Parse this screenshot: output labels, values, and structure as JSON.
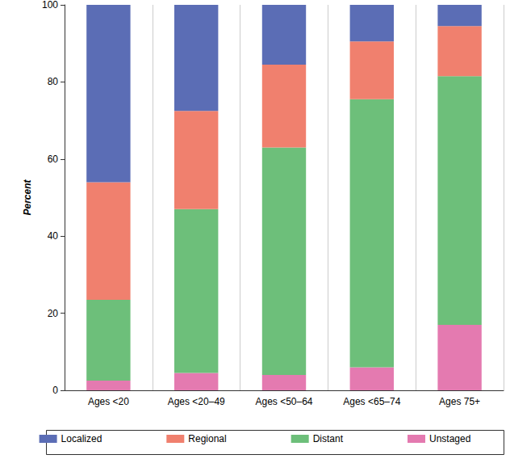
{
  "chart_data": {
    "type": "bar",
    "stacked": true,
    "grid": true,
    "y_label": "Percent",
    "categories": [
      "Ages <20",
      "Ages <20–49",
      "Ages <50–64",
      "Ages <65–74",
      "Ages 75+"
    ],
    "series": [
      {
        "name": "Localized",
        "color": "#5b6db5",
        "values": [
          46,
          27.5,
          15.5,
          9.5,
          5.5
        ]
      },
      {
        "name": "Regional",
        "color": "#f0806e",
        "values": [
          30.5,
          25.5,
          21.5,
          15,
          13
        ]
      },
      {
        "name": "Distant",
        "color": "#6dbf7a",
        "values": [
          21,
          42.5,
          59,
          69.5,
          64.5
        ]
      },
      {
        "name": "Unstaged",
        "color": "#e47ab0",
        "values": [
          2.5,
          4.5,
          4,
          6,
          17
        ]
      }
    ],
    "ylim": [
      0,
      100
    ],
    "yticks": [
      0,
      20,
      40,
      60,
      80,
      100
    ],
    "legend": "bottom"
  }
}
